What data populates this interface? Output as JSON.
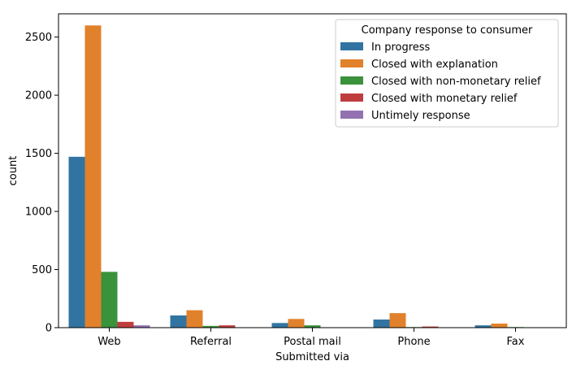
{
  "chart_data": {
    "type": "bar",
    "title": "",
    "xlabel": "Submitted via",
    "ylabel": "count",
    "ylim": [
      0,
      2700
    ],
    "yticks": [
      0,
      500,
      1000,
      1500,
      2000,
      2500
    ],
    "grid": false,
    "legend": {
      "title": "Company response to consumer",
      "placement": "top-right"
    },
    "categories": [
      "Web",
      "Referral",
      "Postal mail",
      "Phone",
      "Fax"
    ],
    "series": [
      {
        "name": "In progress",
        "color": "#3274a1",
        "values": [
          1470,
          105,
          40,
          70,
          20
        ]
      },
      {
        "name": "Closed with explanation",
        "color": "#e1812c",
        "values": [
          2600,
          150,
          75,
          125,
          35
        ]
      },
      {
        "name": "Closed with non-monetary relief",
        "color": "#3a923a",
        "values": [
          480,
          15,
          20,
          5,
          5
        ]
      },
      {
        "name": "Closed with monetary relief",
        "color": "#c03d3e",
        "values": [
          50,
          20,
          0,
          10,
          0
        ]
      },
      {
        "name": "Untimely response",
        "color": "#9372b2",
        "values": [
          20,
          0,
          0,
          0,
          0
        ]
      }
    ]
  }
}
